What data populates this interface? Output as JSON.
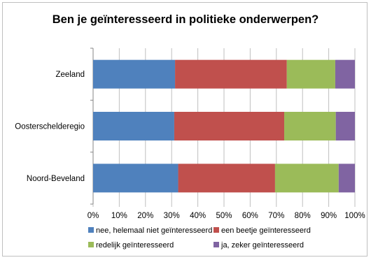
{
  "chart_data": {
    "type": "bar",
    "orientation": "horizontal",
    "stacked": "percent",
    "title": "Ben je geïnteresseerd in politieke onderwerpen?",
    "categories": [
      "Zeeland",
      "Oosterschelderegio",
      "Noord-Beveland"
    ],
    "series": [
      {
        "name": "nee, helemaal niet geïnteresseerd",
        "color": "#4F81BD",
        "values": [
          31.3,
          31.0,
          32.5
        ]
      },
      {
        "name": "een beetje geïnteresseerd",
        "color": "#C0504D",
        "values": [
          42.7,
          42.0,
          37.0
        ]
      },
      {
        "name": "redelijk geïnteresseerd",
        "color": "#9BBB59",
        "values": [
          18.5,
          19.7,
          24.3
        ]
      },
      {
        "name": "ja, zeker geïnteresseerd",
        "color": "#8064A2",
        "values": [
          7.5,
          7.3,
          6.2
        ]
      }
    ],
    "xlim": [
      0,
      100
    ],
    "xticks": [
      "0%",
      "10%",
      "20%",
      "30%",
      "40%",
      "50%",
      "60%",
      "70%",
      "80%",
      "90%",
      "100%"
    ],
    "grid": true,
    "legend_position": "bottom"
  }
}
